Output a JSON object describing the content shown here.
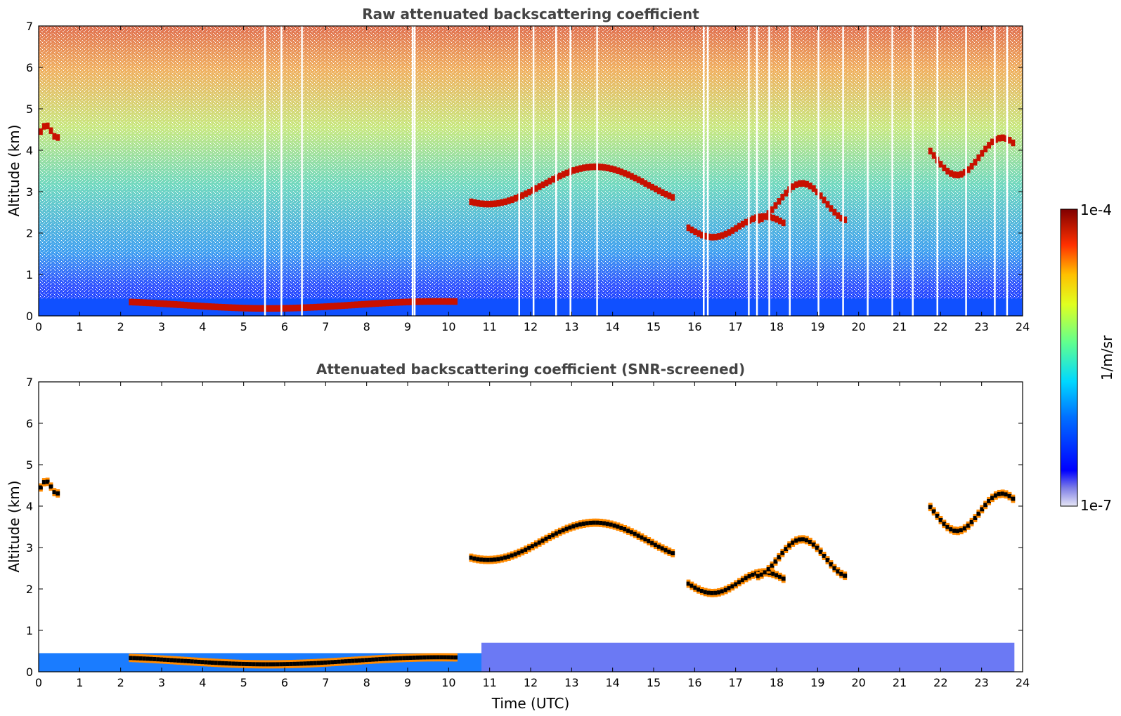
{
  "chart_data": [
    {
      "type": "heatmap",
      "title": "Raw attenuated backscattering coefficient",
      "xlabel": "",
      "ylabel": "Altitude (km)",
      "xlim": [
        0,
        24
      ],
      "ylim": [
        0,
        7
      ],
      "xticks": [
        "0",
        "1",
        "2",
        "3",
        "4",
        "5",
        "6",
        "7",
        "8",
        "9",
        "10",
        "11",
        "12",
        "13",
        "14",
        "15",
        "16",
        "17",
        "18",
        "19",
        "20",
        "21",
        "22",
        "23",
        "24"
      ],
      "yticks": [
        "0",
        "1",
        "2",
        "3",
        "4",
        "5",
        "6",
        "7"
      ],
      "grid": false,
      "features": [
        {
          "kind": "boundary-layer",
          "x": [
            2.2,
            10.2
          ],
          "y": [
            0.18,
            0.35
          ],
          "level": "high"
        },
        {
          "kind": "cloud",
          "x": [
            0.0,
            0.5
          ],
          "y": [
            4.3,
            4.6
          ],
          "level": "high"
        },
        {
          "kind": "cloud",
          "x": [
            10.5,
            15.5
          ],
          "y": [
            2.7,
            3.6
          ],
          "level": "high"
        },
        {
          "kind": "cloud",
          "x": [
            15.8,
            18.2
          ],
          "y": [
            1.9,
            2.4
          ],
          "level": "high"
        },
        {
          "kind": "cloud",
          "x": [
            17.5,
            19.7
          ],
          "y": [
            2.3,
            3.2
          ],
          "level": "high"
        },
        {
          "kind": "cloud",
          "x": [
            21.7,
            23.8
          ],
          "y": [
            3.4,
            4.3
          ],
          "level": "high"
        }
      ]
    },
    {
      "type": "heatmap",
      "title": "Attenuated backscattering coefficient (SNR-screened)",
      "xlabel": "Time (UTC)",
      "ylabel": "Altitude (km)",
      "xlim": [
        0,
        24
      ],
      "ylim": [
        0,
        7
      ],
      "xticks": [
        "0",
        "1",
        "2",
        "3",
        "4",
        "5",
        "6",
        "7",
        "8",
        "9",
        "10",
        "11",
        "12",
        "13",
        "14",
        "15",
        "16",
        "17",
        "18",
        "19",
        "20",
        "21",
        "22",
        "23",
        "24"
      ],
      "yticks": [
        "0",
        "1",
        "2",
        "3",
        "4",
        "5",
        "6",
        "7"
      ],
      "grid": false
    }
  ],
  "colorbar": {
    "max_label": "1e-4",
    "min_label": "1e-7",
    "unit_label": "1/m/sr",
    "colormap": "jet",
    "scale": "log",
    "range": [
      1e-07,
      0.0001
    ]
  }
}
